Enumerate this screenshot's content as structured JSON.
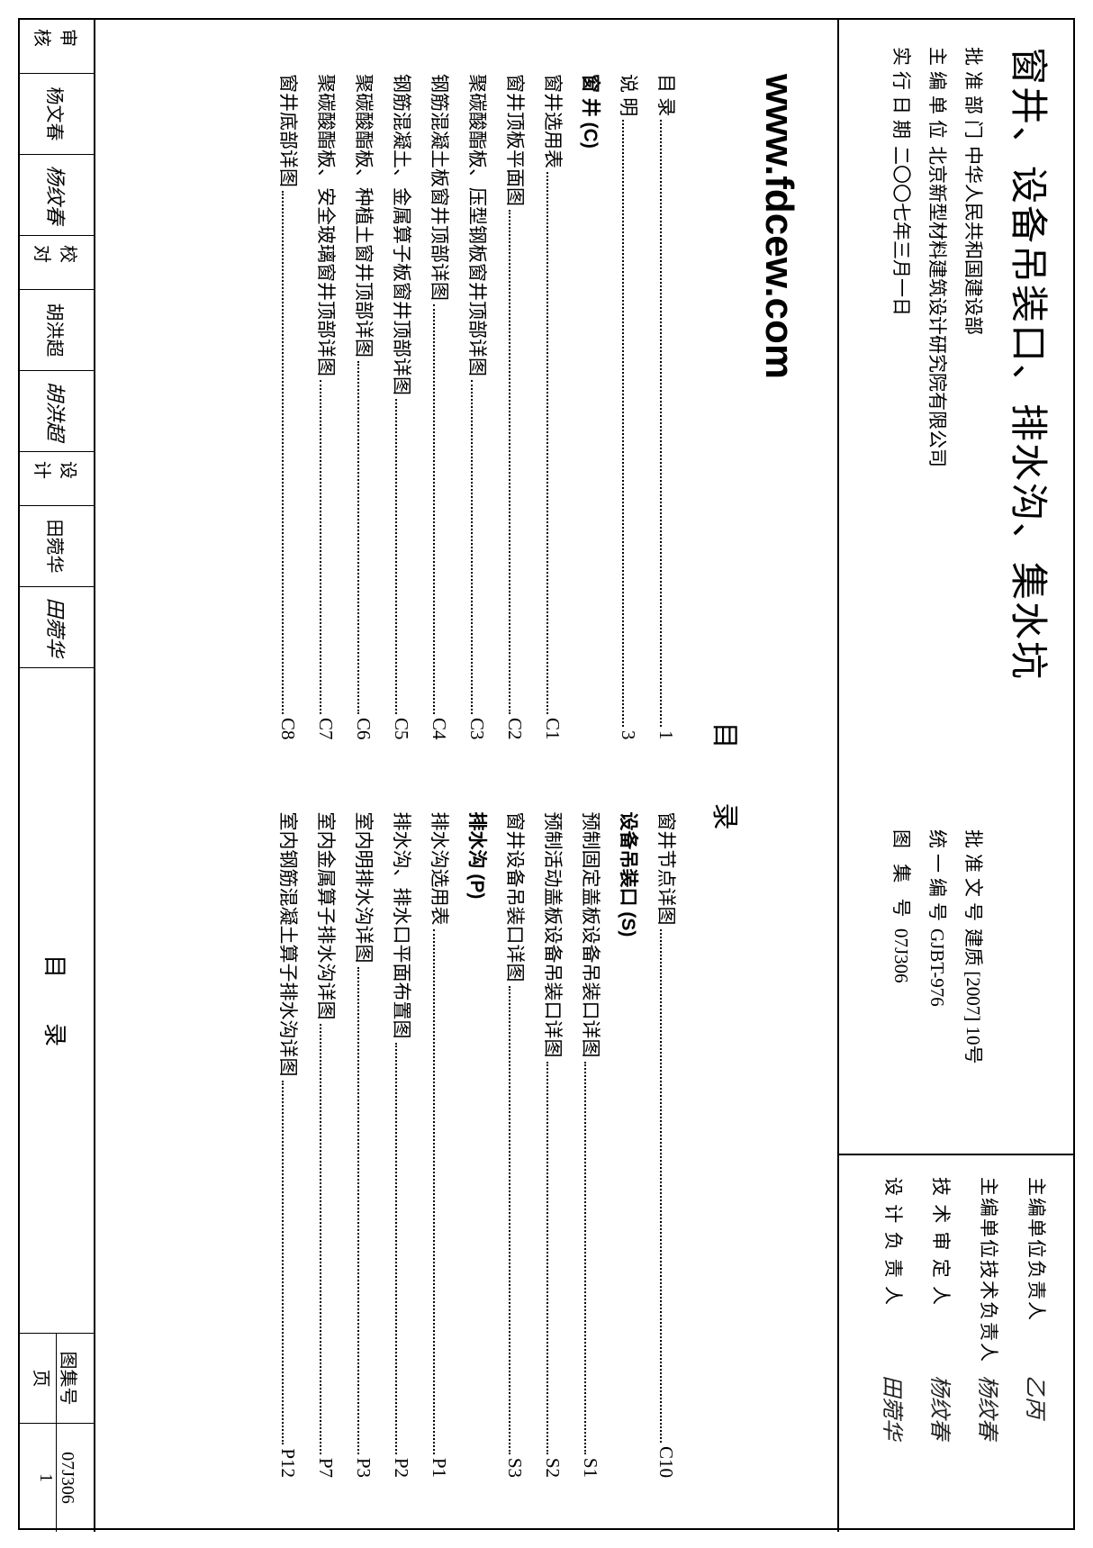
{
  "title": "窗井、设备吊装口、排水沟、集水坑",
  "meta": {
    "approve_dept_label": "批准部门",
    "approve_dept": "中华人民共和国建设部",
    "approve_doc_label": "批准文号",
    "approve_doc": "建质 [2007] 10号",
    "editor_unit_label": "主编单位",
    "editor_unit": "北京新型材料建筑设计研究院有限公司",
    "unified_no_label": "统一编号",
    "unified_no": "GJBT-976",
    "effective_date_label": "实行日期",
    "effective_date": "二〇〇七年三月一日",
    "atlas_no_label": "图 集 号",
    "atlas_no": "07J306"
  },
  "signers": [
    {
      "role": "主编单位负责人",
      "spaced": false,
      "sig": "乙丙"
    },
    {
      "role": "主编单位技术负责人",
      "spaced": false,
      "sig": "杨纹春"
    },
    {
      "role": "技 术 审 定 人",
      "spaced": false,
      "sig": "杨纹春"
    },
    {
      "role": "设 计 负 责 人",
      "spaced": false,
      "sig": "田菀华"
    }
  ],
  "watermark": "www.fdcew.com",
  "toc_heading": "目录",
  "toc_left": [
    {
      "name": "目 录",
      "type": "item",
      "page": "1"
    },
    {
      "name": "说 明",
      "type": "item",
      "page": "3"
    },
    {
      "name": "窗 井 (C)",
      "type": "section"
    },
    {
      "name": "窗井选用表",
      "type": "item",
      "page": "C1"
    },
    {
      "name": "窗井顶板平面图",
      "type": "item",
      "page": "C2"
    },
    {
      "name": "聚碳酸酯板、压型钢板窗井顶部详图",
      "type": "item",
      "page": "C3"
    },
    {
      "name": "钢筋混凝土板窗井顶部详图",
      "type": "item",
      "page": "C4"
    },
    {
      "name": "钢筋混凝土、金属算子板窗井顶部详图",
      "type": "item",
      "page": "C5"
    },
    {
      "name": "聚碳酸酯板、种植土窗井顶部详图",
      "type": "item",
      "page": "C6"
    },
    {
      "name": "聚碳酸酯板、安全玻璃窗井顶部详图",
      "type": "item",
      "page": "C7"
    },
    {
      "name": "窗井底部详图",
      "type": "item",
      "page": "C8"
    }
  ],
  "toc_right": [
    {
      "name": "窗井节点详图",
      "type": "item",
      "page": "C10"
    },
    {
      "name": "设备吊装口 (S)",
      "type": "section"
    },
    {
      "name": "预制固定盖板设备吊装口详图",
      "type": "item",
      "page": "S1"
    },
    {
      "name": "预制活动盖板设备吊装口详图",
      "type": "item",
      "page": "S2"
    },
    {
      "name": "窗井设备吊装口详图",
      "type": "item",
      "page": "S3"
    },
    {
      "name": "排水沟 (P)",
      "type": "section"
    },
    {
      "name": "排水沟选用表",
      "type": "item",
      "page": "P1"
    },
    {
      "name": "排水沟、排水口平面布置图",
      "type": "item",
      "page": "P2"
    },
    {
      "name": "室内明排水沟详图",
      "type": "item",
      "page": "P3"
    },
    {
      "name": "室内金属算子排水沟详图",
      "type": "item",
      "page": "P7"
    },
    {
      "name": "室内钢筋混凝土算子排水沟详图",
      "type": "item",
      "page": "P12"
    }
  ],
  "footer": {
    "review_label": "审核",
    "review_name": "杨文春",
    "review_sig": "杨纹春",
    "check_label": "校对",
    "check_name": "胡洪超",
    "check_sig": "胡洪超",
    "design_label": "设计",
    "design_name": "田菀华",
    "design_sig": "田菀华",
    "center_title": "目录",
    "atlas_no_label": "图集号",
    "atlas_no": "07J306",
    "page_label": "页",
    "page_no": "1"
  }
}
